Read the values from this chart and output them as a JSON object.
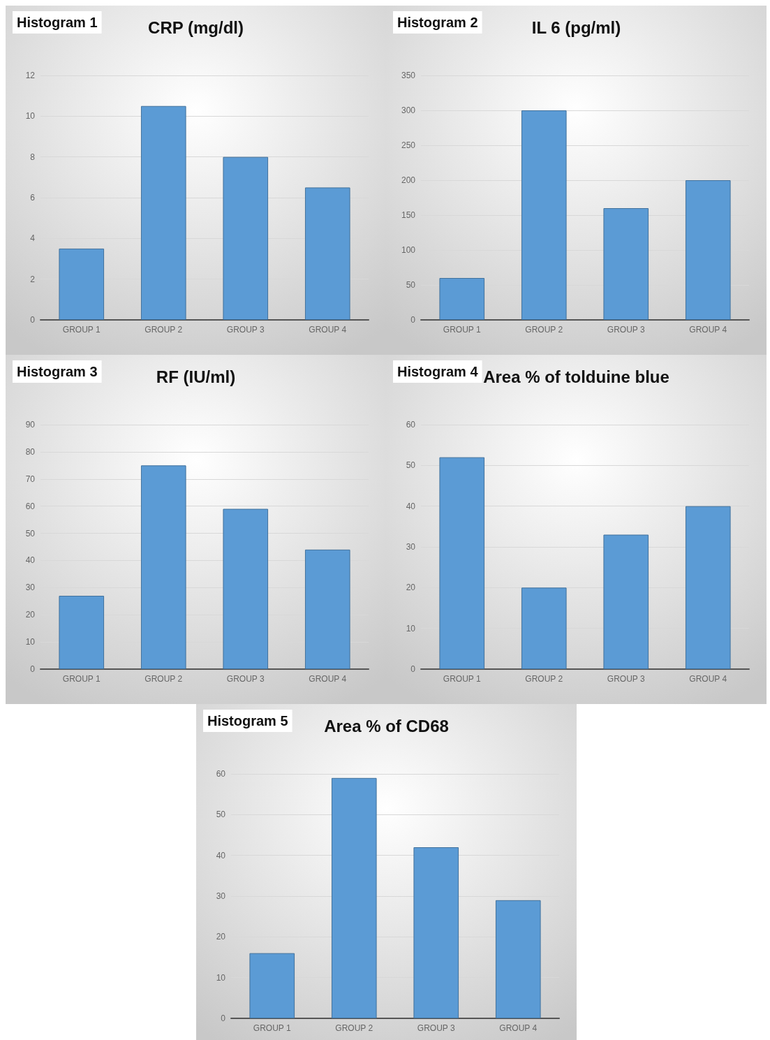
{
  "chart_data": [
    {
      "type": "bar",
      "title": "CRP (mg/dl)",
      "annotations": [
        "Histogram 1"
      ],
      "categories": [
        "GROUP 1",
        "GROUP 2",
        "GROUP 3",
        "GROUP 4"
      ],
      "values": [
        3.5,
        10.5,
        8,
        6.5
      ],
      "color": "#5b9bd5",
      "ylim": [
        0,
        12
      ],
      "yticks": [
        0,
        2,
        4,
        6,
        8,
        10,
        12
      ],
      "grid": "y"
    },
    {
      "type": "bar",
      "title": "IL 6 (pg/ml)",
      "annotations": [
        "Histogram 2"
      ],
      "categories": [
        "GROUP 1",
        "GROUP 2",
        "GROUP 3",
        "GROUP 4"
      ],
      "values": [
        60,
        300,
        160,
        200
      ],
      "color": "#5b9bd5",
      "ylim": [
        0,
        350
      ],
      "yticks": [
        0,
        50,
        100,
        150,
        200,
        250,
        300,
        350
      ],
      "grid": "y"
    },
    {
      "type": "bar",
      "title": "RF (IU/ml)",
      "annotations": [
        "Histogram 3"
      ],
      "categories": [
        "GROUP 1",
        "GROUP 2",
        "GROUP 3",
        "GROUP 4"
      ],
      "values": [
        27,
        75,
        59,
        44
      ],
      "color": "#5b9bd5",
      "ylim": [
        0,
        90
      ],
      "yticks": [
        0,
        10,
        20,
        30,
        40,
        50,
        60,
        70,
        80,
        90
      ],
      "grid": "y"
    },
    {
      "type": "bar",
      "title": "Area % of tolduine blue",
      "annotations": [
        "Histogram 4"
      ],
      "categories": [
        "GROUP 1",
        "GROUP 2",
        "GROUP 3",
        "GROUP 4"
      ],
      "values": [
        52,
        20,
        33,
        40
      ],
      "color": "#5b9bd5",
      "ylim": [
        0,
        60
      ],
      "yticks": [
        0,
        10,
        20,
        30,
        40,
        50,
        60
      ],
      "grid": "y"
    },
    {
      "type": "bar",
      "title": "Area % of CD68",
      "annotations": [
        "Histogram 5"
      ],
      "categories": [
        "GROUP 1",
        "GROUP 2",
        "GROUP 3",
        "GROUP 4"
      ],
      "values": [
        16,
        59,
        42,
        29
      ],
      "color": "#5b9bd5",
      "ylim": [
        0,
        60
      ],
      "yticks": [
        0,
        10,
        20,
        30,
        40,
        50,
        60
      ],
      "grid": "y"
    }
  ]
}
